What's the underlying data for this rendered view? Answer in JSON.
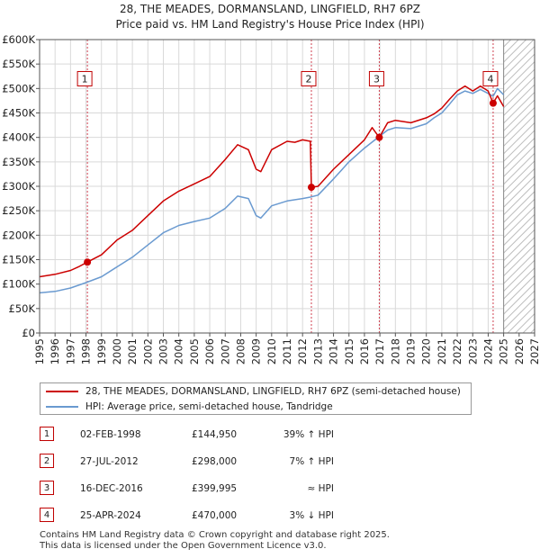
{
  "title_line1": "28, THE MEADES, DORMANSLAND, LINGFIELD, RH7 6PZ",
  "title_line2": "Price paid vs. HM Land Registry's House Price Index (HPI)",
  "chart_data": {
    "type": "line",
    "title": "28, THE MEADES, DORMANSLAND, LINGFIELD, RH7 6PZ — Price paid vs. HM Land Registry's House Price Index (HPI)",
    "xlabel": "",
    "ylabel": "",
    "xlim": [
      1995,
      2027
    ],
    "ylim": [
      0,
      600000
    ],
    "x_ticks": [
      1995,
      1996,
      1997,
      1998,
      1999,
      2000,
      2001,
      2002,
      2003,
      2004,
      2005,
      2006,
      2007,
      2008,
      2009,
      2010,
      2011,
      2012,
      2013,
      2014,
      2015,
      2016,
      2017,
      2018,
      2019,
      2020,
      2021,
      2022,
      2023,
      2024,
      2025,
      2026,
      2027
    ],
    "y_ticks": [
      0,
      50000,
      100000,
      150000,
      200000,
      250000,
      300000,
      350000,
      400000,
      450000,
      500000,
      550000,
      600000
    ],
    "y_tick_labels": [
      "£0",
      "£50K",
      "£100K",
      "£150K",
      "£200K",
      "£250K",
      "£300K",
      "£350K",
      "£400K",
      "£450K",
      "£500K",
      "£550K",
      "£600K"
    ],
    "data_end_year": 2025.0,
    "grid": true,
    "series": [
      {
        "name": "28, THE MEADES, DORMANSLAND, LINGFIELD, RH7 6PZ (semi-detached house)",
        "color": "#cc0000",
        "x": [
          1995.0,
          1996.0,
          1997.0,
          1997.5,
          1998.09,
          1999.0,
          2000.0,
          2001.0,
          2002.0,
          2003.0,
          2004.0,
          2005.0,
          2006.0,
          2007.0,
          2007.8,
          2008.5,
          2009.0,
          2009.3,
          2010.0,
          2011.0,
          2011.5,
          2012.0,
          2012.5,
          2012.57,
          2013.0,
          2014.0,
          2015.0,
          2016.0,
          2016.5,
          2016.96,
          2017.5,
          2018.0,
          2019.0,
          2020.0,
          2020.5,
          2021.0,
          2021.5,
          2022.0,
          2022.5,
          2023.0,
          2023.5,
          2024.0,
          2024.32,
          2024.6,
          2025.0
        ],
        "y": [
          115000,
          120000,
          128000,
          135000,
          144950,
          160000,
          190000,
          210000,
          240000,
          270000,
          290000,
          305000,
          320000,
          355000,
          385000,
          375000,
          335000,
          330000,
          375000,
          392000,
          390000,
          395000,
          392000,
          298000,
          300000,
          335000,
          365000,
          395000,
          420000,
          399995,
          430000,
          435000,
          430000,
          440000,
          448000,
          460000,
          478000,
          495000,
          505000,
          495000,
          505000,
          495000,
          470000,
          485000,
          463000
        ]
      },
      {
        "name": "HPI: Average price, semi-detached house, Tandridge",
        "color": "#6a9ad0",
        "x": [
          1995.0,
          1996.0,
          1997.0,
          1998.0,
          1999.0,
          2000.0,
          2001.0,
          2002.0,
          2003.0,
          2004.0,
          2005.0,
          2006.0,
          2007.0,
          2007.8,
          2008.5,
          2009.0,
          2009.3,
          2010.0,
          2011.0,
          2012.0,
          2012.5,
          2013.0,
          2014.0,
          2015.0,
          2016.0,
          2016.96,
          2017.5,
          2018.0,
          2019.0,
          2020.0,
          2020.5,
          2021.0,
          2021.5,
          2022.0,
          2022.5,
          2023.0,
          2023.5,
          2024.0,
          2024.32,
          2024.6,
          2025.0
        ],
        "y": [
          82000,
          85000,
          92000,
          103000,
          115000,
          135000,
          155000,
          180000,
          205000,
          220000,
          228000,
          235000,
          255000,
          280000,
          275000,
          240000,
          235000,
          260000,
          270000,
          275000,
          278000,
          282000,
          315000,
          350000,
          378000,
          402000,
          415000,
          420000,
          418000,
          428000,
          440000,
          450000,
          468000,
          487000,
          495000,
          490000,
          498000,
          490000,
          484000,
          500000,
          487000
        ]
      }
    ],
    "sales": [
      {
        "label": "1",
        "x": 1998.09,
        "y": 144950
      },
      {
        "label": "2",
        "x": 2012.57,
        "y": 298000
      },
      {
        "label": "3",
        "x": 2016.96,
        "y": 399995
      },
      {
        "label": "4",
        "x": 2024.32,
        "y": 470000
      }
    ],
    "sale_box_value": 520000
  },
  "legend": {
    "property_label": "28, THE MEADES, DORMANSLAND, LINGFIELD, RH7 6PZ (semi-detached house)",
    "hpi_label": "HPI: Average price, semi-detached house, Tandridge",
    "property_color": "#cc0000",
    "hpi_color": "#6a9ad0"
  },
  "transactions": [
    {
      "num": "1",
      "date": "02-FEB-1998",
      "price": "£144,950",
      "hpi": "39% ↑ HPI"
    },
    {
      "num": "2",
      "date": "27-JUL-2012",
      "price": "£298,000",
      "hpi": "7% ↑ HPI"
    },
    {
      "num": "3",
      "date": "16-DEC-2016",
      "price": "£399,995",
      "hpi": "≈ HPI"
    },
    {
      "num": "4",
      "date": "25-APR-2024",
      "price": "£470,000",
      "hpi": "3% ↓ HPI"
    }
  ],
  "footer_line1": "Contains HM Land Registry data © Crown copyright and database right 2025.",
  "footer_line2": "This data is licensed under the Open Government Licence v3.0."
}
